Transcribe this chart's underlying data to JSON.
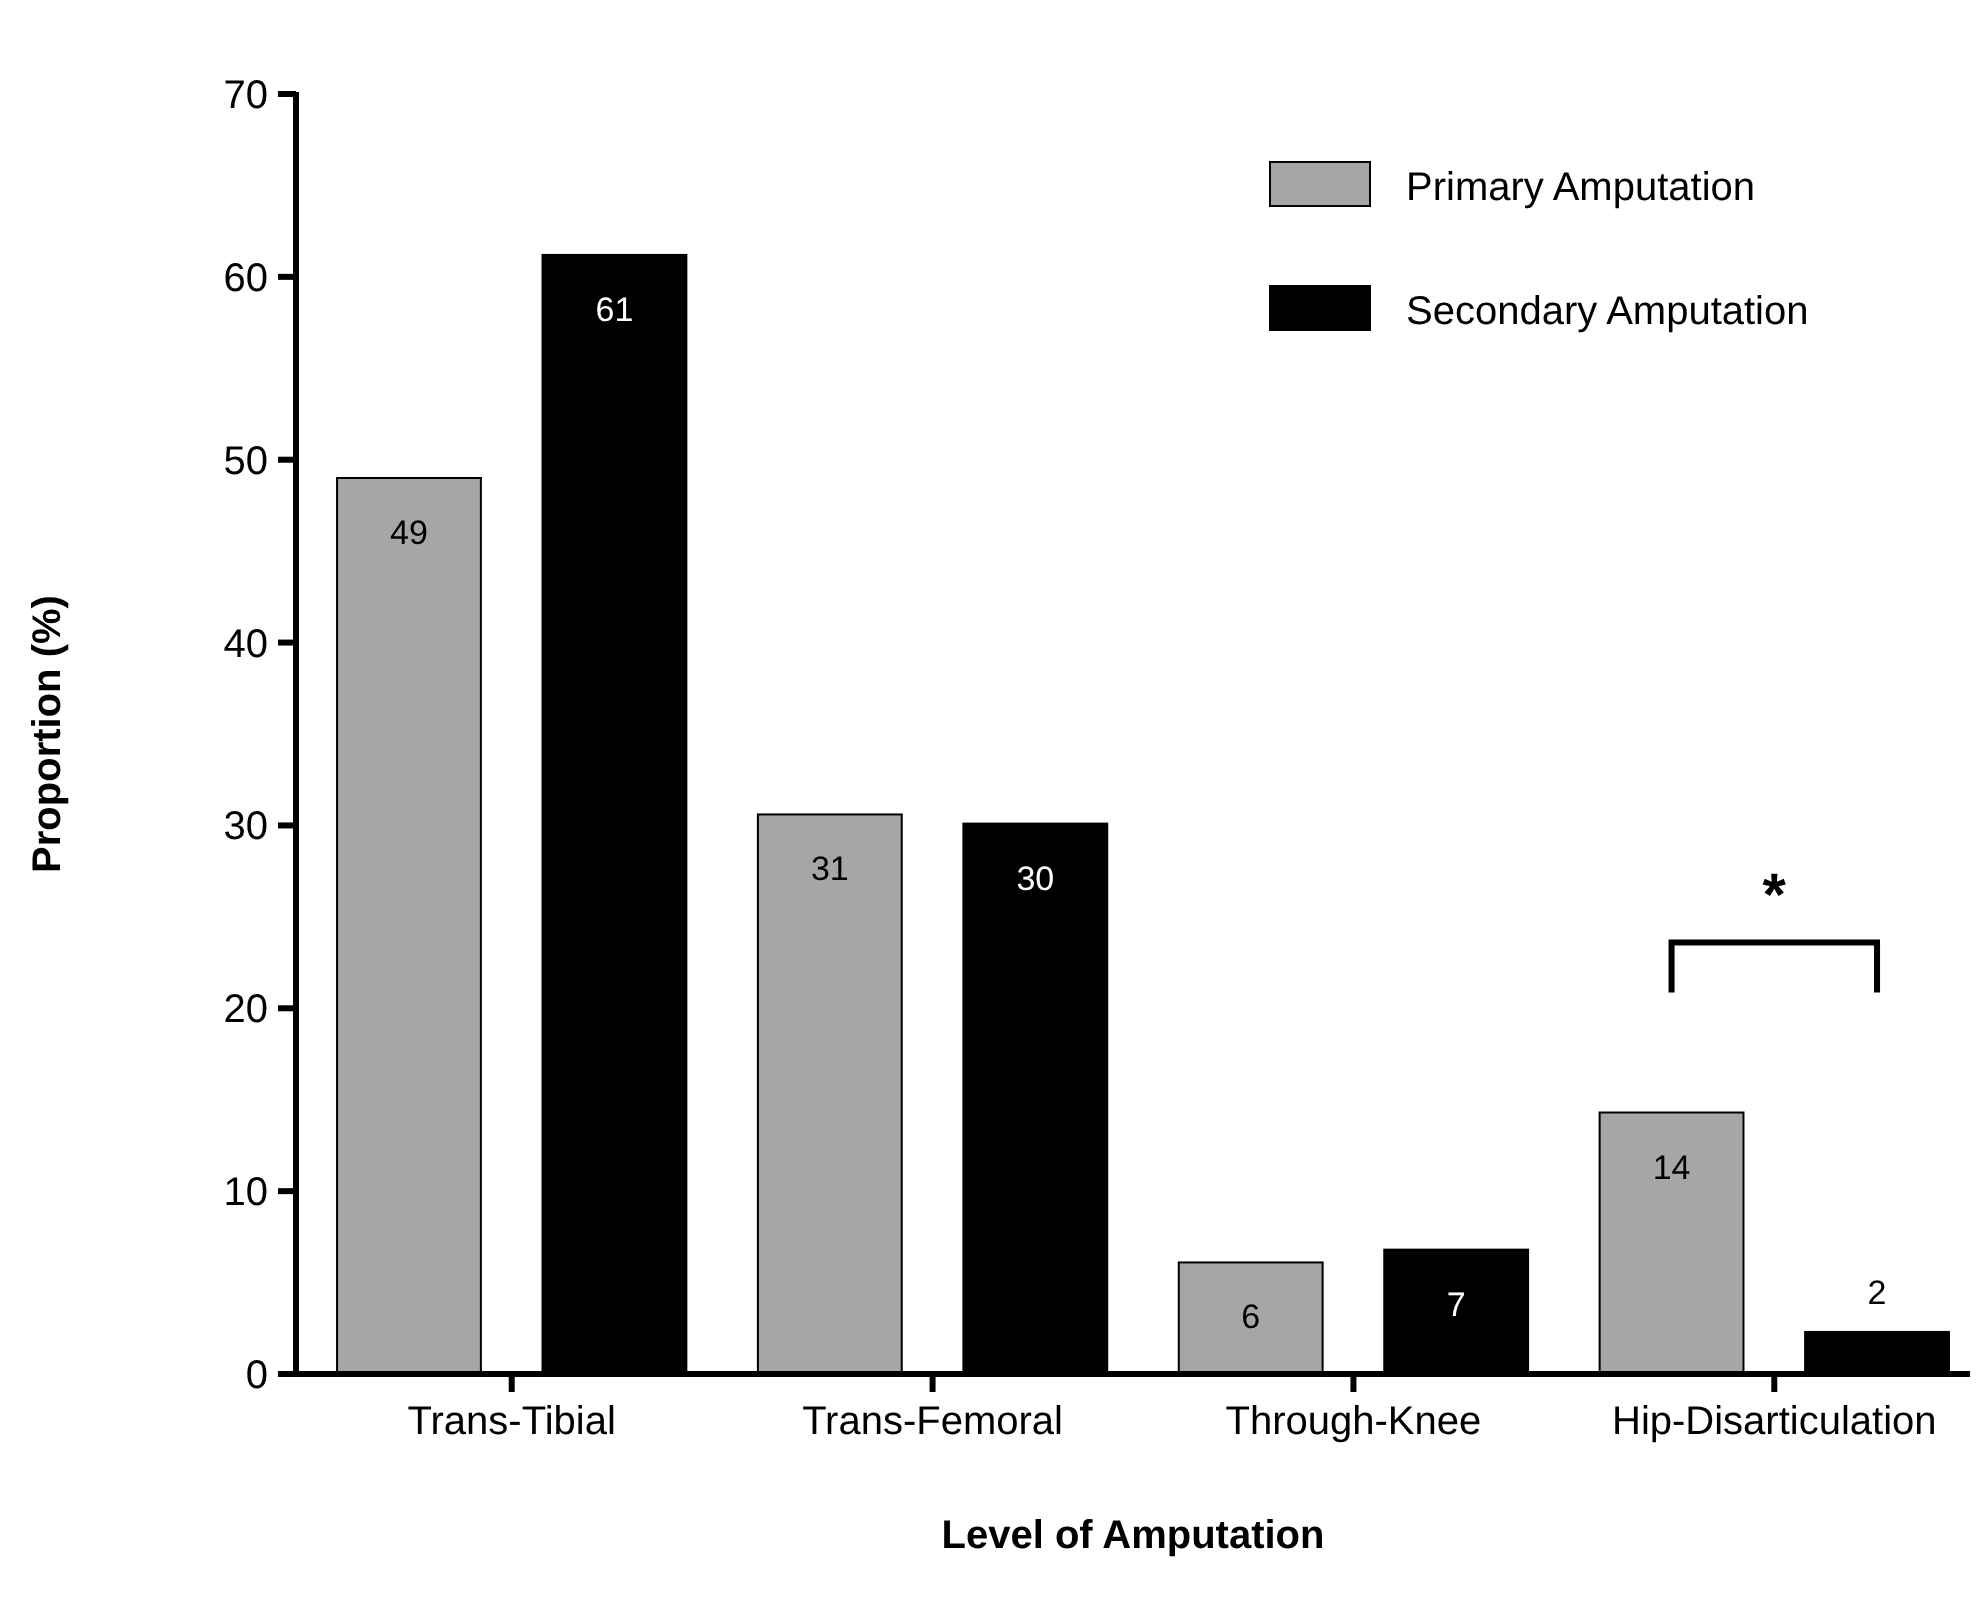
{
  "chart_data": {
    "type": "bar",
    "xlabel": "Level of Amputation",
    "ylabel": "Proportion (%)",
    "categories": [
      "Trans-Tibial",
      "Trans-Femoral",
      "Through-Knee",
      "Hip-Disarticulation"
    ],
    "series": [
      {
        "name": "Primary Amputation",
        "color": "#a6a6a6",
        "values": [
          49,
          30.6,
          6.1,
          14.3
        ],
        "value_labels": [
          "49",
          "31",
          "6",
          "14"
        ]
      },
      {
        "name": "Secondary Amputation",
        "color": "#000000",
        "values": [
          61.2,
          30.1,
          6.8,
          2.3
        ],
        "value_labels": [
          "61",
          "30",
          "7",
          "2"
        ]
      }
    ],
    "ylim": [
      0,
      70
    ],
    "yticks": [
      0,
      10,
      20,
      30,
      40,
      50,
      60,
      70
    ],
    "grid": false,
    "legend": "top right",
    "annotations": [
      "*"
    ]
  }
}
